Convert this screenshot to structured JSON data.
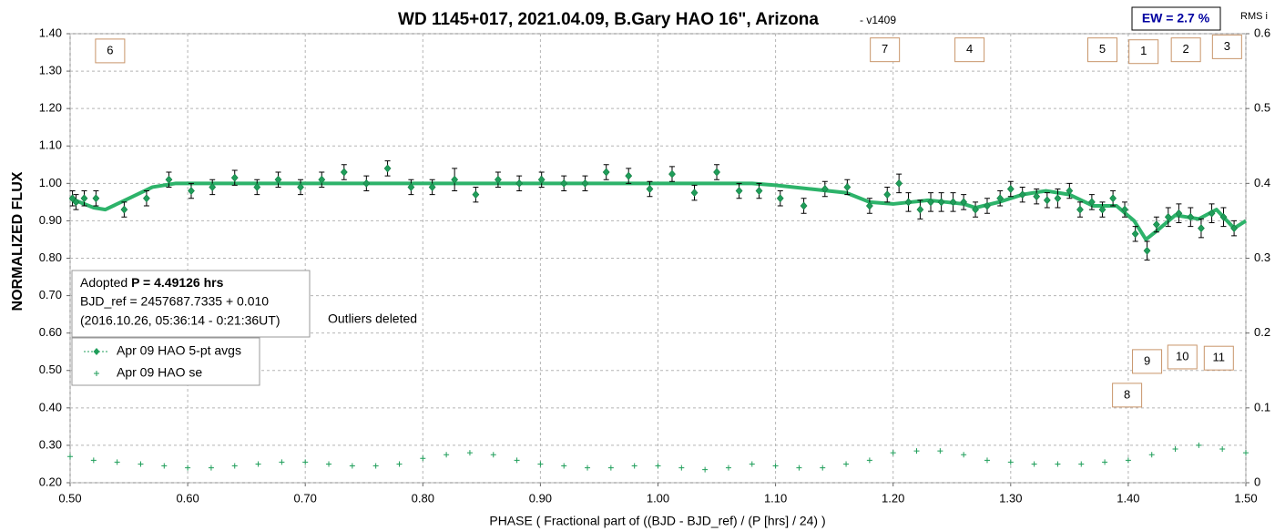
{
  "chart_data": {
    "type": "scatter",
    "title": "WD 1145+017, 2021.04.09, B.Gary HAO 16\", Arizona",
    "subtitle": "- v1409",
    "badge": "EW = 2.7 %",
    "xlabel": "PHASE ( Fractional part of ((BJD - BJD_ref) / (P [hrs] / 24) )",
    "ylabel": "NORMALIZED FLUX",
    "y2label": "RMS i",
    "info": {
      "adopted_label": "Adopted",
      "adopted_value": "P = 4.49126 hrs",
      "line2": "BJD_ref = 2457687.7335 + 0.010",
      "line3": "(2016.10.26, 05:36:14 - 0:21:36UT)"
    },
    "note": "Outliers deleted",
    "xlim": [
      0.5,
      1.5
    ],
    "xticks": [
      {
        "value": 0.5,
        "label": "0.50"
      },
      {
        "value": 0.6,
        "label": "0.60"
      },
      {
        "value": 0.7,
        "label": "0.70"
      },
      {
        "value": 0.8,
        "label": "0.80"
      },
      {
        "value": 0.9,
        "label": "0.90"
      },
      {
        "value": 1.0,
        "label": "1.00"
      },
      {
        "value": 1.1,
        "label": "1.10"
      },
      {
        "value": 1.2,
        "label": "1.20"
      },
      {
        "value": 1.3,
        "label": "1.30"
      },
      {
        "value": 1.4,
        "label": "1.40"
      },
      {
        "value": 1.5,
        "label": "1.50"
      }
    ],
    "ylim": [
      0.2,
      1.4
    ],
    "yticks": [
      {
        "value": 0.2,
        "label": "0.20"
      },
      {
        "value": 0.3,
        "label": "0.30"
      },
      {
        "value": 0.4,
        "label": "0.40"
      },
      {
        "value": 0.5,
        "label": "0.50"
      },
      {
        "value": 0.6,
        "label": "0.60"
      },
      {
        "value": 0.7,
        "label": "0.70"
      },
      {
        "value": 0.8,
        "label": "0.80"
      },
      {
        "value": 0.9,
        "label": "0.90"
      },
      {
        "value": 1.0,
        "label": "1.00"
      },
      {
        "value": 1.1,
        "label": "1.10"
      },
      {
        "value": 1.2,
        "label": "1.20"
      },
      {
        "value": 1.3,
        "label": "1.30"
      },
      {
        "value": 1.4,
        "label": "1.40"
      }
    ],
    "y2lim": [
      0,
      0.6
    ],
    "y2ticks": [
      0,
      0.1,
      0.2,
      0.3,
      0.4,
      0.5,
      0.6
    ],
    "grid": true,
    "series": [
      {
        "name": "Apr 09 HAO 5-pt avgs",
        "color": "#1f9e5a",
        "x": [
          0.502,
          0.505,
          0.512,
          0.522,
          0.546,
          0.565,
          0.584,
          0.603,
          0.621,
          0.64,
          0.659,
          0.677,
          0.696,
          0.714,
          0.733,
          0.752,
          0.77,
          0.79,
          0.808,
          0.827,
          0.845,
          0.864,
          0.882,
          0.901,
          0.92,
          0.938,
          0.956,
          0.975,
          0.993,
          1.012,
          1.031,
          1.05,
          1.069,
          1.086,
          1.104,
          1.124,
          1.142,
          1.161,
          1.18,
          1.195,
          1.205,
          1.213,
          1.223,
          1.232,
          1.241,
          1.251,
          1.26,
          1.27,
          1.28,
          1.291,
          1.3,
          1.31,
          1.322,
          1.331,
          1.34,
          1.35,
          1.359,
          1.369,
          1.378,
          1.387,
          1.397,
          1.406,
          1.416,
          1.424,
          1.434,
          1.443,
          1.453,
          1.462,
          1.471,
          1.481,
          1.49
        ],
        "values": [
          0.96,
          0.95,
          0.96,
          0.96,
          0.93,
          0.96,
          1.01,
          0.98,
          0.99,
          1.015,
          0.99,
          1.01,
          0.99,
          1.01,
          1.03,
          1.0,
          1.04,
          0.99,
          0.99,
          1.01,
          0.97,
          1.01,
          1.0,
          1.01,
          1.0,
          1.0,
          1.03,
          1.02,
          0.985,
          1.025,
          0.975,
          1.03,
          0.98,
          0.98,
          0.96,
          0.94,
          0.985,
          0.99,
          0.94,
          0.97,
          1.0,
          0.95,
          0.93,
          0.95,
          0.95,
          0.95,
          0.95,
          0.93,
          0.94,
          0.96,
          0.985,
          0.97,
          0.965,
          0.955,
          0.96,
          0.98,
          0.93,
          0.95,
          0.93,
          0.96,
          0.93,
          0.865,
          0.82,
          0.89,
          0.91,
          0.92,
          0.91,
          0.88,
          0.92,
          0.91,
          0.88
        ],
        "errors": [
          0.02,
          0.02,
          0.02,
          0.02,
          0.02,
          0.02,
          0.02,
          0.02,
          0.02,
          0.02,
          0.02,
          0.02,
          0.02,
          0.02,
          0.02,
          0.02,
          0.02,
          0.02,
          0.02,
          0.03,
          0.02,
          0.02,
          0.02,
          0.02,
          0.02,
          0.02,
          0.02,
          0.02,
          0.02,
          0.02,
          0.02,
          0.02,
          0.02,
          0.02,
          0.02,
          0.02,
          0.02,
          0.02,
          0.02,
          0.02,
          0.025,
          0.025,
          0.025,
          0.025,
          0.025,
          0.025,
          0.02,
          0.02,
          0.02,
          0.02,
          0.02,
          0.02,
          0.02,
          0.02,
          0.025,
          0.02,
          0.02,
          0.02,
          0.02,
          0.02,
          0.02,
          0.02,
          0.025,
          0.02,
          0.025,
          0.025,
          0.025,
          0.025,
          0.025,
          0.025,
          0.02
        ]
      },
      {
        "name": "Apr 09 HAO se",
        "color": "#1f9e5a",
        "axis": "y2",
        "x": [
          0.5,
          0.52,
          0.54,
          0.56,
          0.58,
          0.6,
          0.62,
          0.64,
          0.66,
          0.68,
          0.7,
          0.72,
          0.74,
          0.76,
          0.78,
          0.8,
          0.82,
          0.84,
          0.86,
          0.88,
          0.9,
          0.92,
          0.94,
          0.96,
          0.98,
          1.0,
          1.02,
          1.04,
          1.06,
          1.08,
          1.1,
          1.12,
          1.14,
          1.16,
          1.18,
          1.2,
          1.22,
          1.24,
          1.26,
          1.28,
          1.3,
          1.32,
          1.34,
          1.36,
          1.38,
          1.4,
          1.42,
          1.44,
          1.46,
          1.48,
          1.5
        ],
        "values": [
          0.035,
          0.03,
          0.0275,
          0.025,
          0.0225,
          0.02,
          0.02,
          0.0225,
          0.025,
          0.0275,
          0.0275,
          0.025,
          0.0225,
          0.0225,
          0.025,
          0.0325,
          0.0375,
          0.04,
          0.0375,
          0.03,
          0.025,
          0.0225,
          0.02,
          0.02,
          0.0225,
          0.0225,
          0.02,
          0.0175,
          0.02,
          0.025,
          0.0225,
          0.02,
          0.02,
          0.025,
          0.03,
          0.04,
          0.0425,
          0.0425,
          0.0375,
          0.03,
          0.0275,
          0.025,
          0.025,
          0.025,
          0.0275,
          0.03,
          0.0375,
          0.045,
          0.05,
          0.045,
          0.04
        ]
      }
    ],
    "fit": {
      "color": "#2db36a",
      "x": [
        0.5,
        0.52,
        0.53,
        0.55,
        0.57,
        0.59,
        0.7,
        0.9,
        1.08,
        1.1,
        1.13,
        1.16,
        1.18,
        1.2,
        1.23,
        1.26,
        1.27,
        1.29,
        1.31,
        1.33,
        1.35,
        1.37,
        1.39,
        1.405,
        1.415,
        1.425,
        1.44,
        1.45,
        1.46,
        1.475,
        1.49,
        1.5
      ],
      "values": [
        0.96,
        0.935,
        0.93,
        0.96,
        0.99,
        1.0,
        1.0,
        1.0,
        1.0,
        0.995,
        0.985,
        0.975,
        0.95,
        0.945,
        0.955,
        0.945,
        0.935,
        0.95,
        0.97,
        0.98,
        0.97,
        0.94,
        0.94,
        0.9,
        0.85,
        0.875,
        0.915,
        0.91,
        0.905,
        0.93,
        0.88,
        0.9
      ]
    },
    "annotations": [
      {
        "text": "6",
        "x": 0.534,
        "y": 1.354
      },
      {
        "text": "7",
        "x": 1.193,
        "y": 1.357
      },
      {
        "text": "4",
        "x": 1.265,
        "y": 1.357
      },
      {
        "text": "5",
        "x": 1.378,
        "y": 1.357
      },
      {
        "text": "1",
        "x": 1.413,
        "y": 1.352
      },
      {
        "text": "2",
        "x": 1.449,
        "y": 1.357
      },
      {
        "text": "3",
        "x": 1.484,
        "y": 1.365
      },
      {
        "text": "9",
        "x": 1.416,
        "y": 0.524
      },
      {
        "text": "10",
        "x": 1.446,
        "y": 0.536
      },
      {
        "text": "11",
        "x": 1.477,
        "y": 0.533
      },
      {
        "text": "8",
        "x": 1.399,
        "y": 0.434
      }
    ]
  }
}
